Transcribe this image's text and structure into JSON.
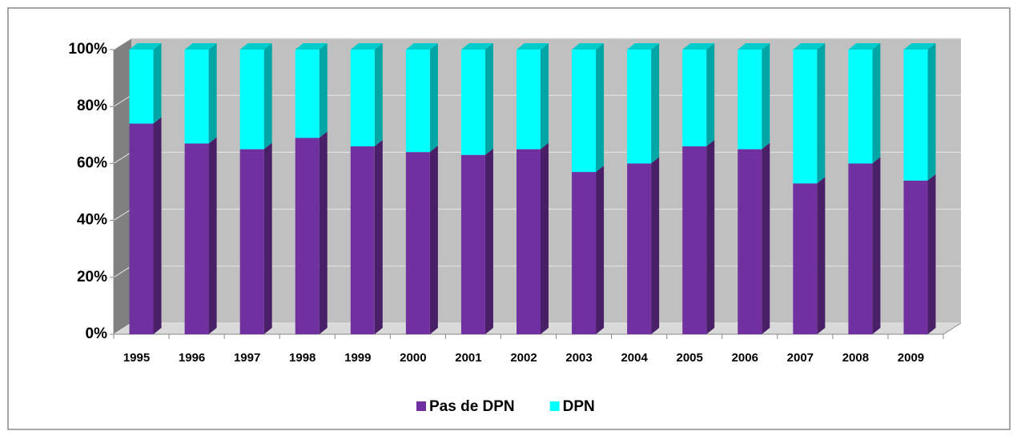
{
  "chart_data": {
    "type": "stacked_bar_3d",
    "categories": [
      "1995",
      "1996",
      "1997",
      "1998",
      "1999",
      "2000",
      "2001",
      "2002",
      "2003",
      "2004",
      "2005",
      "2006",
      "2007",
      "2008",
      "2009"
    ],
    "series": [
      {
        "name": "Pas de DPN",
        "color": "#7030a0",
        "values": [
          74,
          67,
          65,
          69,
          66,
          64,
          63,
          65,
          57,
          60,
          66,
          65,
          53,
          60,
          54
        ]
      },
      {
        "name": "DPN",
        "color": "#00ffff",
        "values": [
          26,
          33,
          35,
          31,
          34,
          36,
          37,
          35,
          43,
          40,
          34,
          35,
          47,
          40,
          46
        ]
      }
    ],
    "ylim": [
      0,
      100
    ],
    "yticks": [
      {
        "value": 0,
        "label": "0%"
      },
      {
        "value": 20,
        "label": "20%"
      },
      {
        "value": 40,
        "label": "40%"
      },
      {
        "value": 60,
        "label": "60%"
      },
      {
        "value": 80,
        "label": "80%"
      },
      {
        "value": 100,
        "label": "100%"
      }
    ],
    "grid": true,
    "legend": "bottom"
  }
}
